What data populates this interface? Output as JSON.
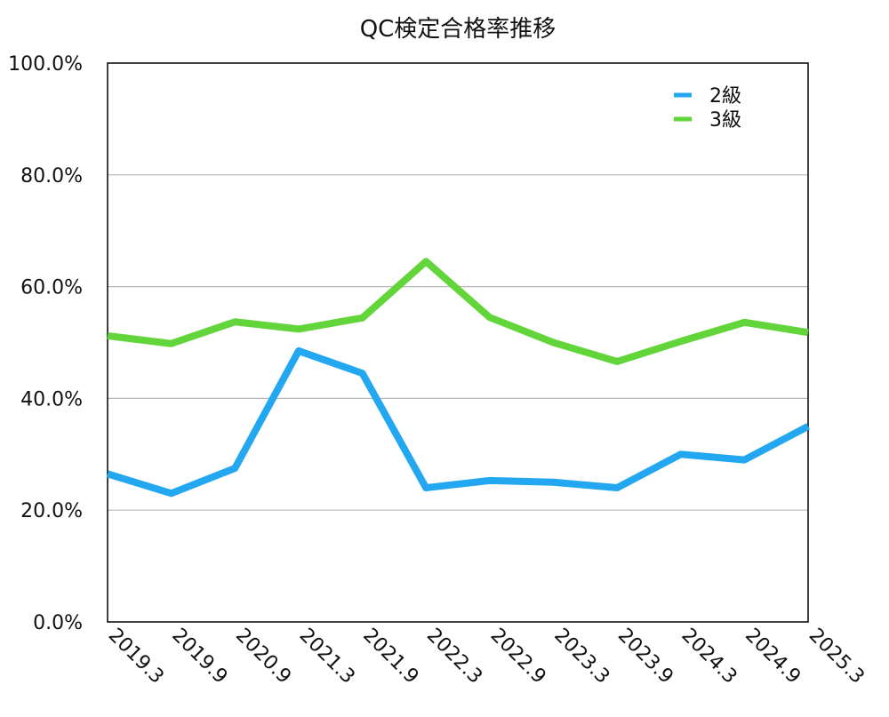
{
  "chart_data": {
    "type": "line",
    "title": "QC検定合格率推移",
    "categories": [
      "2019.3",
      "2019.9",
      "2020.9",
      "2021.3",
      "2021.9",
      "2022.3",
      "2022.9",
      "2023.3",
      "2023.9",
      "2024.3",
      "2024.9",
      "2025.3"
    ],
    "series": [
      {
        "name": "2級",
        "color": "#22A7F0",
        "values": [
          26.5,
          23.0,
          27.5,
          48.5,
          44.5,
          24.0,
          25.3,
          25.0,
          24.0,
          30.0,
          29.0,
          35.0
        ]
      },
      {
        "name": "3級",
        "color": "#62D53A",
        "values": [
          51.2,
          49.8,
          53.7,
          52.4,
          54.4,
          64.5,
          54.5,
          50.0,
          46.6,
          50.2,
          53.6,
          51.8
        ]
      }
    ],
    "y_ticks": [
      "0.0%",
      "20.0%",
      "40.0%",
      "60.0%",
      "80.0%",
      "100.0%"
    ],
    "ylim": [
      0,
      100
    ],
    "grid": true,
    "legend_position": "top-right"
  }
}
